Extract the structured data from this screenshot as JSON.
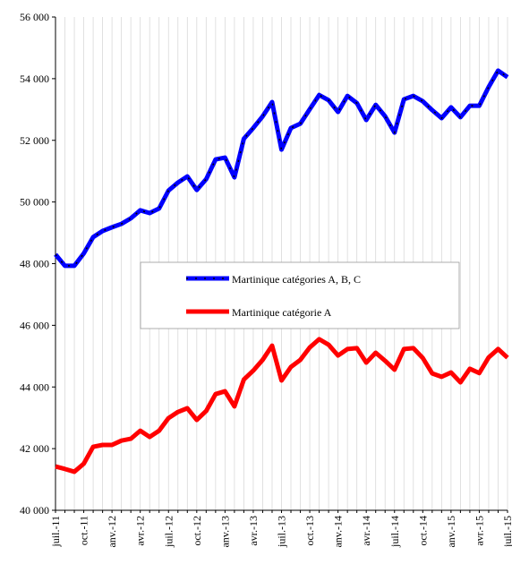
{
  "chart_data": {
    "type": "line",
    "categories": [
      "juil.-11",
      null,
      null,
      "oct.-11",
      null,
      null,
      "anv.-12",
      null,
      null,
      "avr.-12",
      null,
      null,
      "juil.-12",
      null,
      null,
      "oct.-12",
      null,
      null,
      "anv.-13",
      null,
      null,
      "avr.-13",
      null,
      null,
      "juil.-13",
      null,
      null,
      "oct.-13",
      null,
      null,
      "anv.-14",
      null,
      null,
      "avr.-14",
      null,
      null,
      "juil.-14",
      null,
      null,
      "oct.-14",
      null,
      null,
      "anv.-15",
      null,
      null,
      "avr.-15",
      null,
      null,
      "juil.-15"
    ],
    "series": [
      {
        "name": "Martinique catégories A, B, C",
        "color": "#0000ff",
        "values": [
          48300,
          47930,
          47930,
          48330,
          48860,
          49060,
          49180,
          49290,
          49470,
          49730,
          49640,
          49790,
          50370,
          50630,
          50830,
          50390,
          50740,
          51380,
          51440,
          50800,
          52050,
          52400,
          52780,
          53240,
          51700,
          52400,
          52540,
          53010,
          53470,
          53300,
          52920,
          53440,
          53210,
          52660,
          53150,
          52780,
          52250,
          53330,
          53440,
          53270,
          52980,
          52720,
          53070,
          52750,
          53120,
          53120,
          53730,
          54260,
          54050
        ]
      },
      {
        "name": "Martinique catégorie A",
        "color": "#ff0000",
        "values": [
          41420,
          41340,
          41250,
          41510,
          42060,
          42120,
          42120,
          42260,
          42320,
          42580,
          42380,
          42580,
          42990,
          43190,
          43310,
          42930,
          43220,
          43770,
          43860,
          43370,
          44240,
          44530,
          44880,
          45340,
          44210,
          44650,
          44880,
          45280,
          45550,
          45370,
          45020,
          45230,
          45260,
          44790,
          45110,
          44850,
          44560,
          45230,
          45260,
          44940,
          44440,
          44330,
          44470,
          44150,
          44590,
          44450,
          44960,
          45230,
          44950
        ]
      }
    ],
    "ylim": [
      40000,
      56000
    ],
    "yticks": [
      {
        "value": 40000,
        "label": "40 000"
      },
      {
        "value": 42000,
        "label": "42 000"
      },
      {
        "value": 44000,
        "label": "44 000"
      },
      {
        "value": 46000,
        "label": "46 000"
      },
      {
        "value": 48000,
        "label": "48 000"
      },
      {
        "value": 50000,
        "label": "50 000"
      },
      {
        "value": 52000,
        "label": "52 000"
      },
      {
        "value": 54000,
        "label": "54 000"
      },
      {
        "value": 56000,
        "label": "56 000"
      }
    ],
    "grid": "x"
  }
}
